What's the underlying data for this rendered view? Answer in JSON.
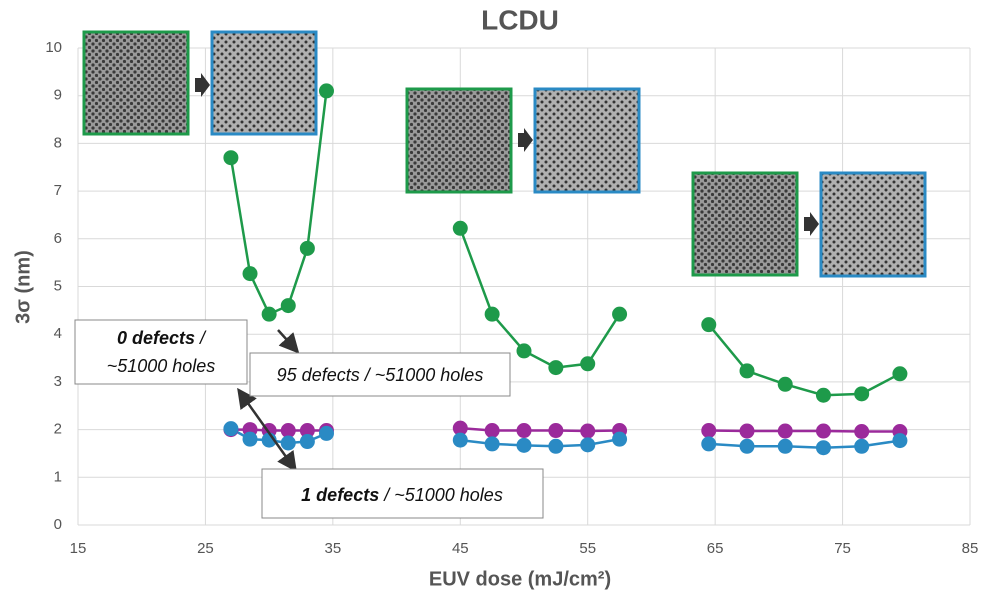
{
  "chart_data": {
    "type": "line",
    "title": "LCDU",
    "x_label": "EUV dose (mJ/cm²)",
    "y_label": "3σ (nm)",
    "xlim": [
      15,
      85
    ],
    "xticks": [
      15,
      25,
      35,
      45,
      55,
      65,
      75,
      85
    ],
    "ylim": [
      0,
      10
    ],
    "yticks": [
      0,
      1,
      2,
      3,
      4,
      5,
      6,
      7,
      8,
      9,
      10
    ],
    "grid": true,
    "series": [
      {
        "color": "#1e9a4a",
        "x": [
          27,
          28.5,
          30,
          31.5,
          33,
          34.5
        ],
        "values": [
          7.7,
          5.27,
          4.42,
          4.6,
          5.8,
          9.1
        ]
      },
      {
        "color": "#9b2a9b",
        "x": [
          27,
          28.5,
          30,
          31.5,
          33,
          34.5
        ],
        "values": [
          2.0,
          2.0,
          1.98,
          1.98,
          1.98,
          1.98
        ]
      },
      {
        "color": "#2a8ac4",
        "x": [
          27,
          28.5,
          30,
          31.5,
          33,
          34.5
        ],
        "values": [
          2.02,
          1.8,
          1.78,
          1.72,
          1.75,
          1.92
        ]
      },
      {
        "color": "#1e9a4a",
        "x": [
          45,
          47.5,
          50,
          52.5,
          55,
          57.5
        ],
        "values": [
          6.22,
          4.42,
          3.65,
          3.3,
          3.38,
          4.42
        ]
      },
      {
        "color": "#9b2a9b",
        "x": [
          45,
          47.5,
          50,
          52.5,
          55,
          57.5
        ],
        "values": [
          2.03,
          1.98,
          1.98,
          1.98,
          1.97,
          1.98
        ]
      },
      {
        "color": "#2a8ac4",
        "x": [
          45,
          47.5,
          50,
          52.5,
          55,
          57.5
        ],
        "values": [
          1.78,
          1.7,
          1.67,
          1.65,
          1.68,
          1.8
        ]
      },
      {
        "color": "#1e9a4a",
        "x": [
          64.5,
          67.5,
          70.5,
          73.5,
          76.5,
          79.5
        ],
        "values": [
          4.2,
          3.23,
          2.95,
          2.72,
          2.75,
          3.17
        ]
      },
      {
        "color": "#9b2a9b",
        "x": [
          64.5,
          67.5,
          70.5,
          73.5,
          76.5,
          79.5
        ],
        "values": [
          1.98,
          1.97,
          1.97,
          1.97,
          1.96,
          1.96
        ]
      },
      {
        "color": "#2a8ac4",
        "x": [
          64.5,
          67.5,
          70.5,
          73.5,
          76.5,
          79.5
        ],
        "values": [
          1.7,
          1.65,
          1.65,
          1.62,
          1.65,
          1.77
        ]
      }
    ],
    "annotations": [
      {
        "bold": "0 defects",
        "text": " /",
        "line2": "~51000 holes"
      },
      {
        "text": "95 defects / ~51000 holes"
      },
      {
        "bold": "1 defects",
        "text": " / ~51000 holes"
      }
    ]
  }
}
